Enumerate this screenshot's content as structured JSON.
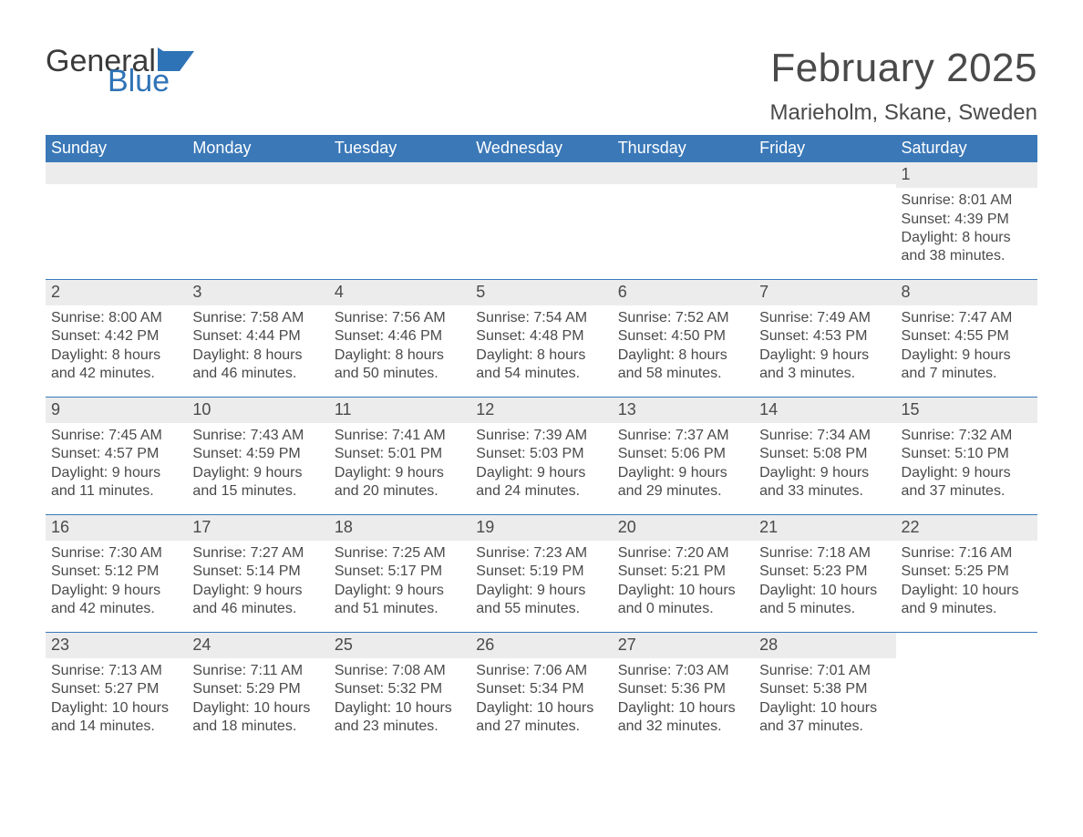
{
  "brand": {
    "general": "General",
    "blue": "Blue"
  },
  "title": "February 2025",
  "location": "Marieholm, Skane, Sweden",
  "header_bg": "#3a78b8",
  "daynum_bg": "#ececec",
  "text_color": "#4a4a4a",
  "weekdays": [
    "Sunday",
    "Monday",
    "Tuesday",
    "Wednesday",
    "Thursday",
    "Friday",
    "Saturday"
  ],
  "weeks": [
    [
      {
        "n": "",
        "lines": []
      },
      {
        "n": "",
        "lines": []
      },
      {
        "n": "",
        "lines": []
      },
      {
        "n": "",
        "lines": []
      },
      {
        "n": "",
        "lines": []
      },
      {
        "n": "",
        "lines": []
      },
      {
        "n": "1",
        "lines": [
          "Sunrise: 8:01 AM",
          "Sunset: 4:39 PM",
          "Daylight: 8 hours",
          "and 38 minutes."
        ]
      }
    ],
    [
      {
        "n": "2",
        "lines": [
          "Sunrise: 8:00 AM",
          "Sunset: 4:42 PM",
          "Daylight: 8 hours",
          "and 42 minutes."
        ]
      },
      {
        "n": "3",
        "lines": [
          "Sunrise: 7:58 AM",
          "Sunset: 4:44 PM",
          "Daylight: 8 hours",
          "and 46 minutes."
        ]
      },
      {
        "n": "4",
        "lines": [
          "Sunrise: 7:56 AM",
          "Sunset: 4:46 PM",
          "Daylight: 8 hours",
          "and 50 minutes."
        ]
      },
      {
        "n": "5",
        "lines": [
          "Sunrise: 7:54 AM",
          "Sunset: 4:48 PM",
          "Daylight: 8 hours",
          "and 54 minutes."
        ]
      },
      {
        "n": "6",
        "lines": [
          "Sunrise: 7:52 AM",
          "Sunset: 4:50 PM",
          "Daylight: 8 hours",
          "and 58 minutes."
        ]
      },
      {
        "n": "7",
        "lines": [
          "Sunrise: 7:49 AM",
          "Sunset: 4:53 PM",
          "Daylight: 9 hours",
          "and 3 minutes."
        ]
      },
      {
        "n": "8",
        "lines": [
          "Sunrise: 7:47 AM",
          "Sunset: 4:55 PM",
          "Daylight: 9 hours",
          "and 7 minutes."
        ]
      }
    ],
    [
      {
        "n": "9",
        "lines": [
          "Sunrise: 7:45 AM",
          "Sunset: 4:57 PM",
          "Daylight: 9 hours",
          "and 11 minutes."
        ]
      },
      {
        "n": "10",
        "lines": [
          "Sunrise: 7:43 AM",
          "Sunset: 4:59 PM",
          "Daylight: 9 hours",
          "and 15 minutes."
        ]
      },
      {
        "n": "11",
        "lines": [
          "Sunrise: 7:41 AM",
          "Sunset: 5:01 PM",
          "Daylight: 9 hours",
          "and 20 minutes."
        ]
      },
      {
        "n": "12",
        "lines": [
          "Sunrise: 7:39 AM",
          "Sunset: 5:03 PM",
          "Daylight: 9 hours",
          "and 24 minutes."
        ]
      },
      {
        "n": "13",
        "lines": [
          "Sunrise: 7:37 AM",
          "Sunset: 5:06 PM",
          "Daylight: 9 hours",
          "and 29 minutes."
        ]
      },
      {
        "n": "14",
        "lines": [
          "Sunrise: 7:34 AM",
          "Sunset: 5:08 PM",
          "Daylight: 9 hours",
          "and 33 minutes."
        ]
      },
      {
        "n": "15",
        "lines": [
          "Sunrise: 7:32 AM",
          "Sunset: 5:10 PM",
          "Daylight: 9 hours",
          "and 37 minutes."
        ]
      }
    ],
    [
      {
        "n": "16",
        "lines": [
          "Sunrise: 7:30 AM",
          "Sunset: 5:12 PM",
          "Daylight: 9 hours",
          "and 42 minutes."
        ]
      },
      {
        "n": "17",
        "lines": [
          "Sunrise: 7:27 AM",
          "Sunset: 5:14 PM",
          "Daylight: 9 hours",
          "and 46 minutes."
        ]
      },
      {
        "n": "18",
        "lines": [
          "Sunrise: 7:25 AM",
          "Sunset: 5:17 PM",
          "Daylight: 9 hours",
          "and 51 minutes."
        ]
      },
      {
        "n": "19",
        "lines": [
          "Sunrise: 7:23 AM",
          "Sunset: 5:19 PM",
          "Daylight: 9 hours",
          "and 55 minutes."
        ]
      },
      {
        "n": "20",
        "lines": [
          "Sunrise: 7:20 AM",
          "Sunset: 5:21 PM",
          "Daylight: 10 hours",
          "and 0 minutes."
        ]
      },
      {
        "n": "21",
        "lines": [
          "Sunrise: 7:18 AM",
          "Sunset: 5:23 PM",
          "Daylight: 10 hours",
          "and 5 minutes."
        ]
      },
      {
        "n": "22",
        "lines": [
          "Sunrise: 7:16 AM",
          "Sunset: 5:25 PM",
          "Daylight: 10 hours",
          "and 9 minutes."
        ]
      }
    ],
    [
      {
        "n": "23",
        "lines": [
          "Sunrise: 7:13 AM",
          "Sunset: 5:27 PM",
          "Daylight: 10 hours",
          "and 14 minutes."
        ]
      },
      {
        "n": "24",
        "lines": [
          "Sunrise: 7:11 AM",
          "Sunset: 5:29 PM",
          "Daylight: 10 hours",
          "and 18 minutes."
        ]
      },
      {
        "n": "25",
        "lines": [
          "Sunrise: 7:08 AM",
          "Sunset: 5:32 PM",
          "Daylight: 10 hours",
          "and 23 minutes."
        ]
      },
      {
        "n": "26",
        "lines": [
          "Sunrise: 7:06 AM",
          "Sunset: 5:34 PM",
          "Daylight: 10 hours",
          "and 27 minutes."
        ]
      },
      {
        "n": "27",
        "lines": [
          "Sunrise: 7:03 AM",
          "Sunset: 5:36 PM",
          "Daylight: 10 hours",
          "and 32 minutes."
        ]
      },
      {
        "n": "28",
        "lines": [
          "Sunrise: 7:01 AM",
          "Sunset: 5:38 PM",
          "Daylight: 10 hours",
          "and 37 minutes."
        ]
      },
      {
        "n": "",
        "lines": []
      }
    ]
  ]
}
